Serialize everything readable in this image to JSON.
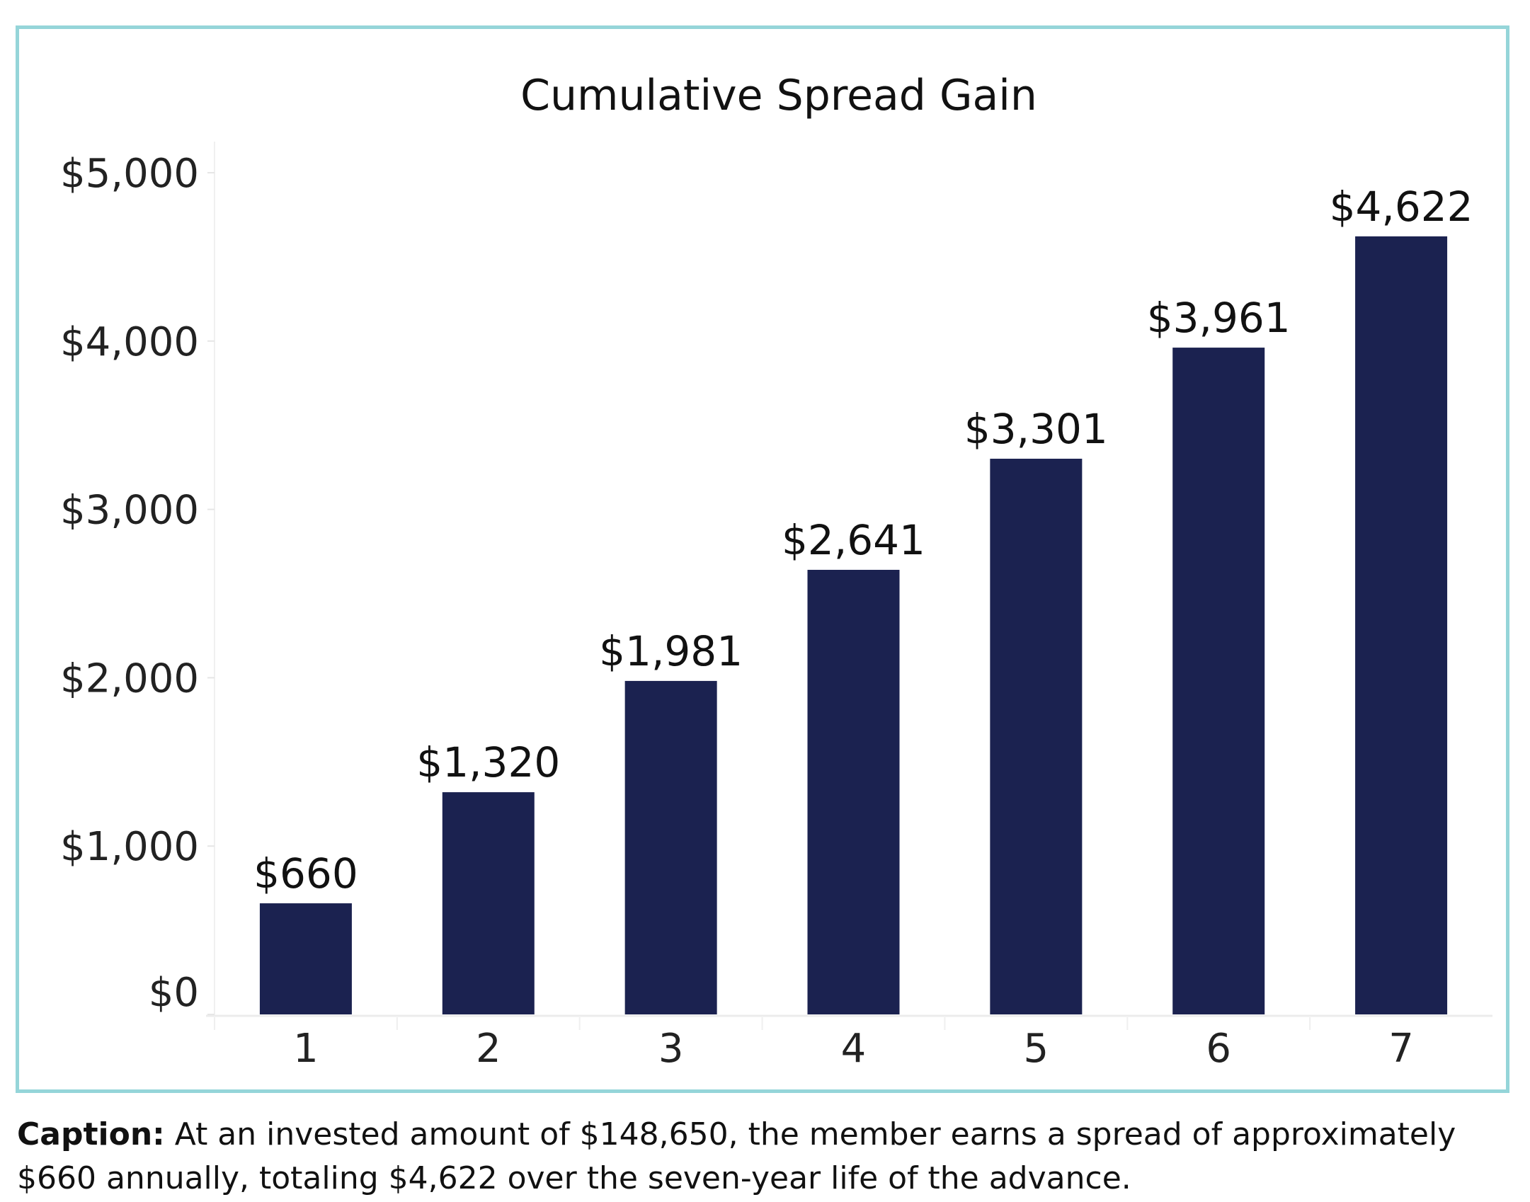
{
  "chart_data": {
    "type": "bar",
    "title": "Cumulative Spread Gain",
    "xlabel": "",
    "ylabel": "",
    "categories": [
      "1",
      "2",
      "3",
      "4",
      "5",
      "6",
      "7"
    ],
    "values": [
      660,
      1320,
      1981,
      2641,
      3301,
      3961,
      4622
    ],
    "data_labels": [
      "$660",
      "$1,320",
      "$1,981",
      "$2,641",
      "$3,301",
      "$3,961",
      "$4,622"
    ],
    "ylim": [
      0,
      5000
    ],
    "yticks": [
      0,
      1000,
      2000,
      3000,
      4000,
      5000
    ],
    "ytick_labels": [
      "$0",
      "$1,000",
      "$2,000",
      "$3,000",
      "$4,000",
      "$5,000"
    ],
    "grid": false,
    "bar_color": "#1b2250",
    "frame_color": "#95d5d9"
  },
  "caption": {
    "label": "Caption:",
    "text": " At an invested amount of $148,650, the member earns a spread of approximately $660 annually, totaling $4,622 over the seven-year life of the advance."
  }
}
